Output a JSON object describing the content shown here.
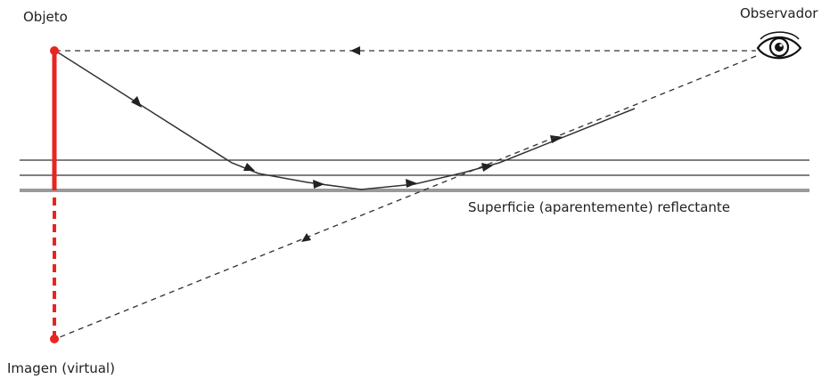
{
  "labels": {
    "object": "Objeto",
    "observer": "Observador",
    "surface": "Superficie (aparentemente) reflectante",
    "image": "Imagen (virtual)"
  },
  "colors": {
    "object": "#e8251f",
    "rays": "#222222",
    "surface": "#999999"
  },
  "icons": {
    "observer": "eye-icon"
  }
}
